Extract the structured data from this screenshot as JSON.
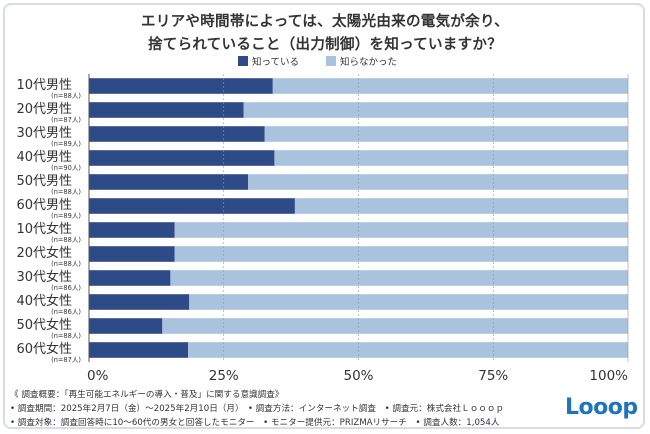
{
  "title_line1": "エリアや時間帯によっては、太陽光由来の電気が余り、",
  "title_line2": "捨てられていること（出力制御）を知っていますか？",
  "chart_data": {
    "type": "bar",
    "orientation": "horizontal",
    "stacked": "percent",
    "title": "エリアや時間帯によっては、太陽光由来の電気が余り、捨てられていること（出力制御）を知っていますか？",
    "categories": [
      "10代男性",
      "20代男性",
      "30代男性",
      "40代男性",
      "50代男性",
      "60代男性",
      "10代女性",
      "20代女性",
      "30代女性",
      "40代女性",
      "50代女性",
      "60代女性"
    ],
    "category_notes": [
      "(n=88人)",
      "(n=87人)",
      "(n=89人)",
      "(n=90人)",
      "(n=88人)",
      "(n=89人)",
      "(n=88人)",
      "(n=88人)",
      "(n=86人)",
      "(n=86人)",
      "(n=88人)",
      "(n=87人)"
    ],
    "series": [
      {
        "name": "知っている",
        "color": "#2e4a87",
        "values": [
          34.1,
          28.7,
          32.6,
          34.4,
          29.5,
          38.2,
          15.9,
          15.9,
          15.1,
          18.6,
          13.6,
          18.4
        ]
      },
      {
        "name": "知らなかった",
        "color": "#a9c2dd",
        "values": [
          65.9,
          71.3,
          67.4,
          65.6,
          70.5,
          61.8,
          84.1,
          84.1,
          84.9,
          81.4,
          86.4,
          81.6
        ]
      }
    ],
    "xlim": [
      0,
      100
    ],
    "xticks": [
      "0%",
      "25%",
      "50%",
      "75%",
      "100%"
    ],
    "legend_position": "top-center",
    "grid": true
  },
  "footer": {
    "line1": "《 調査概要：「再生可能エネルギーの導入・普及」に関する意識調査》",
    "line2": "• 調査期間：2025年2月7日（金）～2025年2月10日（月）　• 調査方法：インターネット調査　• 調査元：株式会社Ｌｏｏｏｐ",
    "line3": "• 調査対象：調査回答時に10～60代の男女と回答したモニター　• モニター提供元：PRIZMAリサーチ　• 調査人数：1,054人"
  },
  "logo_text": "Looop"
}
